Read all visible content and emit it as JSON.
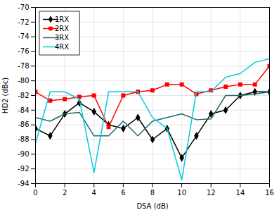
{
  "chart_data": {
    "type": "line",
    "xlabel": "DSA (dB)",
    "ylabel": "HD2 (dBc)",
    "x": [
      0,
      1,
      2,
      3,
      4,
      5,
      6,
      7,
      8,
      9,
      10,
      11,
      12,
      13,
      14,
      15,
      16
    ],
    "series": [
      {
        "name": "1RX",
        "color": "#000000",
        "marker": "diamond",
        "values": [
          -86.5,
          -87.5,
          -84.5,
          -83.0,
          -84.2,
          -86.0,
          -86.5,
          -85.0,
          -88.0,
          -86.5,
          -90.5,
          -87.5,
          -84.5,
          -84.0,
          -82.0,
          -81.5,
          -81.5
        ]
      },
      {
        "name": "2RX",
        "color": "#ff0000",
        "marker": "square",
        "values": [
          -81.5,
          -82.7,
          -82.5,
          -82.2,
          -82.0,
          -86.3,
          -82.0,
          -81.5,
          -81.3,
          -80.5,
          -80.5,
          -81.8,
          -81.3,
          -80.8,
          -80.5,
          -80.5,
          -78.0
        ]
      },
      {
        "name": "3RX",
        "color": "#1f6b6b",
        "values": [
          -85.0,
          -85.5,
          -84.5,
          -84.3,
          -87.5,
          -87.5,
          -85.5,
          -87.5,
          -85.5,
          -85.0,
          -84.5,
          -85.3,
          -85.2,
          -82.0,
          -82.0,
          -81.8,
          -81.5
        ]
      },
      {
        "name": "4RX",
        "color": "#00ccdd",
        "values": [
          -88.5,
          -81.5,
          -81.5,
          -82.5,
          -92.5,
          -81.5,
          -81.5,
          -81.5,
          -85.0,
          -86.5,
          -93.5,
          -81.5,
          -81.5,
          -79.5,
          -79.0,
          -77.5,
          -77.0
        ]
      }
    ],
    "xlim": [
      0,
      16
    ],
    "xticks": [
      0,
      2,
      4,
      6,
      8,
      10,
      12,
      14,
      16
    ],
    "ylim": [
      -94,
      -70
    ],
    "yticks": [
      -94,
      -92,
      -90,
      -88,
      -86,
      -84,
      -82,
      -80,
      -78,
      -76,
      -74,
      -72,
      -70
    ],
    "grid": true,
    "legend": "upper left"
  }
}
